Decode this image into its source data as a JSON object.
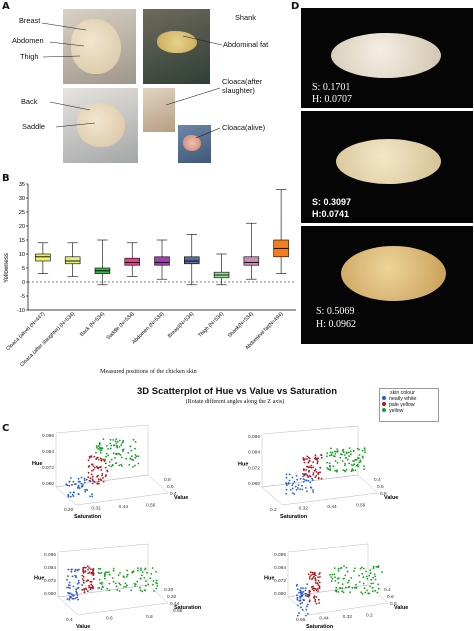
{
  "panels": {
    "A": "A",
    "B": "B",
    "C": "C",
    "D": "D"
  },
  "panelA": {
    "labels": {
      "breast": "Breast",
      "abdomen": "Abdomen",
      "thigh": "Thigh",
      "shank": "Shank",
      "abdominal_fat": "Abdominal fat",
      "back": "Back",
      "cloaca_slaughter": "Cloaca(after\nslaughter)",
      "saddle": "Saddle",
      "cloaca_alive": "Cloaca(alive)"
    }
  },
  "panelD": {
    "items": [
      {
        "s": "S: 0.1701",
        "h": "H: 0.0707"
      },
      {
        "s": "S: 0.3097",
        "h": "H:0.0741"
      },
      {
        "s": "S: 0.5069",
        "h": "H: 0.0962"
      }
    ]
  },
  "chart_data": [
    {
      "type": "box",
      "ylabel": "Yellowness",
      "xlabel": "Measured positions of the chicken skin",
      "ylim": [
        -10,
        35
      ],
      "yticks": [
        -10,
        -5,
        0,
        5,
        10,
        15,
        20,
        25,
        30,
        35
      ],
      "categories": [
        "Cloaca (alive) (N=447)",
        "Cloaca (after slaughter) (N=534)",
        "Back (N=534)",
        "Saddle (N=534)",
        "Abdomen (N=534)",
        "Breast(N=534)",
        "Thigh (N=534)",
        "Shank(N=534)",
        "Abdominal fat(N=494)"
      ],
      "colors": [
        "#f0ef6a",
        "#e6ee7a",
        "#3cb34a",
        "#e1438c",
        "#a13fb0",
        "#5b6c9a",
        "#9be39a",
        "#c98fb3",
        "#f57d1f"
      ],
      "boxes": [
        {
          "min": 3,
          "q1": 7.5,
          "median": 9,
          "q3": 10,
          "max": 14
        },
        {
          "min": 2,
          "q1": 6.5,
          "median": 7.5,
          "q3": 9,
          "max": 14
        },
        {
          "min": -1,
          "q1": 3,
          "median": 4,
          "q3": 5,
          "max": 15
        },
        {
          "min": 2,
          "q1": 6,
          "median": 7,
          "q3": 8.5,
          "max": 14
        },
        {
          "min": 1,
          "q1": 6,
          "median": 7,
          "q3": 9,
          "max": 15
        },
        {
          "min": -1,
          "q1": 6.5,
          "median": 7.5,
          "q3": 9,
          "max": 17
        },
        {
          "min": -1,
          "q1": 1.5,
          "median": 2.5,
          "q3": 3.5,
          "max": 10
        },
        {
          "min": 1,
          "q1": 6,
          "median": 7,
          "q3": 9,
          "max": 21
        },
        {
          "min": 3,
          "q1": 9,
          "median": 12,
          "q3": 15,
          "max": 33
        }
      ],
      "reference_line": 0
    },
    {
      "type": "scatter",
      "title": "3D Scatterplot of Hue vs Value vs Saturation",
      "subtitle": "(Rotate different angles along the Z axis)",
      "legend": {
        "title": "skin colour",
        "entries": [
          {
            "name": "neatly  white",
            "color": "#2a5bd7"
          },
          {
            "name": "pale yellow",
            "color": "#b0161e"
          },
          {
            "name": "yellow",
            "color": "#17a024"
          }
        ]
      },
      "views": [
        {
          "x_label": "Saturation",
          "y_label": "Value",
          "z_label": "Hue",
          "x_ticks": [
            "0.20",
            "0.32",
            "0.44",
            "0.56"
          ],
          "y_ticks": [
            "0.8",
            "0.6",
            "0.4"
          ],
          "z_ticks": [
            "0.096",
            "0.084",
            "0.072",
            "0.060"
          ]
        },
        {
          "x_label": "Saturation",
          "y_label": "Value",
          "z_label": "Hue",
          "x_ticks": [
            "0.2",
            "0.32",
            "0.44",
            "0.56"
          ],
          "y_ticks": [
            "0.4",
            "0.6",
            "0.8"
          ],
          "z_ticks": [
            "0.096",
            "0.084",
            "0.072",
            "0.060"
          ]
        },
        {
          "x_label": "Value",
          "y_label": "Saturation",
          "z_label": "Hue",
          "x_ticks": [
            "0.4",
            "0.6",
            "0.8"
          ],
          "y_ticks": [
            "0.20",
            "0.32",
            "0.44",
            "0.56"
          ],
          "z_ticks": [
            "0.096",
            "0.084",
            "0.072",
            "0.060"
          ]
        },
        {
          "x_label": "Saturation",
          "y_label": "Value",
          "z_label": "Hue",
          "x_ticks": [
            "0.56",
            "0.44",
            "0.32",
            "0.2"
          ],
          "y_ticks": [
            "0.4",
            "0.6",
            "0.8"
          ],
          "z_ticks": [
            "0.096",
            "0.084",
            "0.072",
            "0.060"
          ]
        }
      ]
    }
  ]
}
